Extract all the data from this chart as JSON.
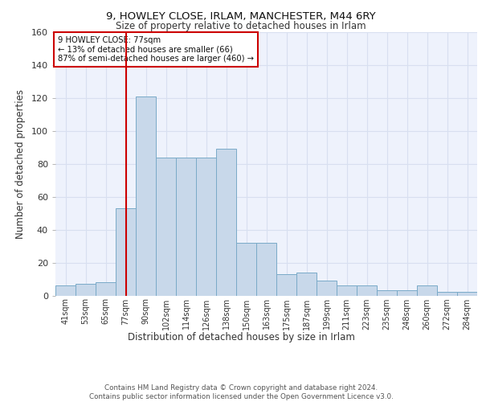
{
  "title1": "9, HOWLEY CLOSE, IRLAM, MANCHESTER, M44 6RY",
  "title2": "Size of property relative to detached houses in Irlam",
  "xlabel": "Distribution of detached houses by size in Irlam",
  "ylabel": "Number of detached properties",
  "bin_labels": [
    "41sqm",
    "53sqm",
    "65sqm",
    "77sqm",
    "90sqm",
    "102sqm",
    "114sqm",
    "126sqm",
    "138sqm",
    "150sqm",
    "163sqm",
    "175sqm",
    "187sqm",
    "199sqm",
    "211sqm",
    "223sqm",
    "235sqm",
    "248sqm",
    "260sqm",
    "272sqm",
    "284sqm"
  ],
  "bar_heights": [
    6,
    7,
    8,
    53,
    121,
    84,
    84,
    84,
    89,
    32,
    32,
    13,
    14,
    9,
    6,
    6,
    3,
    3,
    6,
    2,
    2
  ],
  "bar_color": "#c8d8ea",
  "bar_edgecolor": "#7aaac8",
  "vline_x": 3,
  "vline_color": "#cc0000",
  "annotation_text": "9 HOWLEY CLOSE: 77sqm\n← 13% of detached houses are smaller (66)\n87% of semi-detached houses are larger (460) →",
  "annotation_box_color": "#ffffff",
  "annotation_box_edgecolor": "#cc0000",
  "ylim": [
    0,
    160
  ],
  "yticks": [
    0,
    20,
    40,
    60,
    80,
    100,
    120,
    140,
    160
  ],
  "grid_color": "#d8dff0",
  "bg_color": "#eef2fc",
  "footer": "Contains HM Land Registry data © Crown copyright and database right 2024.\nContains public sector information licensed under the Open Government Licence v3.0."
}
